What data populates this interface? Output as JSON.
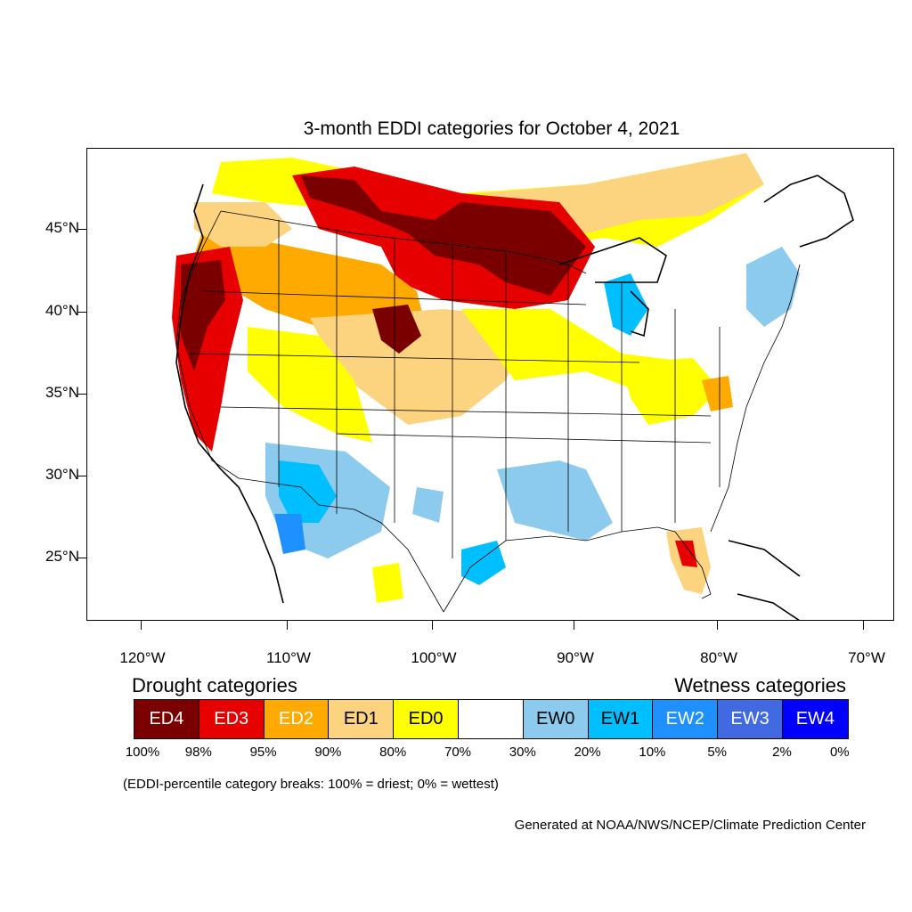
{
  "title": "3-month EDDI categories for October 4, 2021",
  "lat_labels": [
    "45°N",
    "40°N",
    "35°N",
    "30°N",
    "25°N"
  ],
  "lon_labels": [
    "120°W",
    "110°W",
    "100°W",
    "90°W",
    "80°W",
    "70°W"
  ],
  "drought_heading": "Drought categories",
  "wetness_heading": "Wetness categories",
  "categories": [
    {
      "label": "ED4",
      "color": "#7a0000",
      "text_color": "#ffffff"
    },
    {
      "label": "ED3",
      "color": "#e60000",
      "text_color": "#ffffff"
    },
    {
      "label": "ED2",
      "color": "#ffaa00",
      "text_color": "#ffffff"
    },
    {
      "label": "ED1",
      "color": "#fcd37f",
      "text_color": "#000000"
    },
    {
      "label": "ED0",
      "color": "#ffff00",
      "text_color": "#000000"
    },
    {
      "label": "",
      "color": "#ffffff",
      "text_color": "#000000"
    },
    {
      "label": "EW0",
      "color": "#8ccbee",
      "text_color": "#000000"
    },
    {
      "label": "EW1",
      "color": "#00bfff",
      "text_color": "#000000"
    },
    {
      "label": "EW2",
      "color": "#1e90ff",
      "text_color": "#ffffff"
    },
    {
      "label": "EW3",
      "color": "#4169e1",
      "text_color": "#ffffff"
    },
    {
      "label": "EW4",
      "color": "#0000ff",
      "text_color": "#ffffff"
    }
  ],
  "percent_breaks": [
    "100%",
    "98%",
    "95%",
    "90%",
    "80%",
    "70%",
    "30%",
    "20%",
    "10%",
    "5%",
    "2%",
    "0%"
  ],
  "note": "(EDDI-percentile category breaks: 100% = driest; 0% = wettest)",
  "credit": "Generated at NOAA/NWS/NCEP/Climate Prediction Center"
}
